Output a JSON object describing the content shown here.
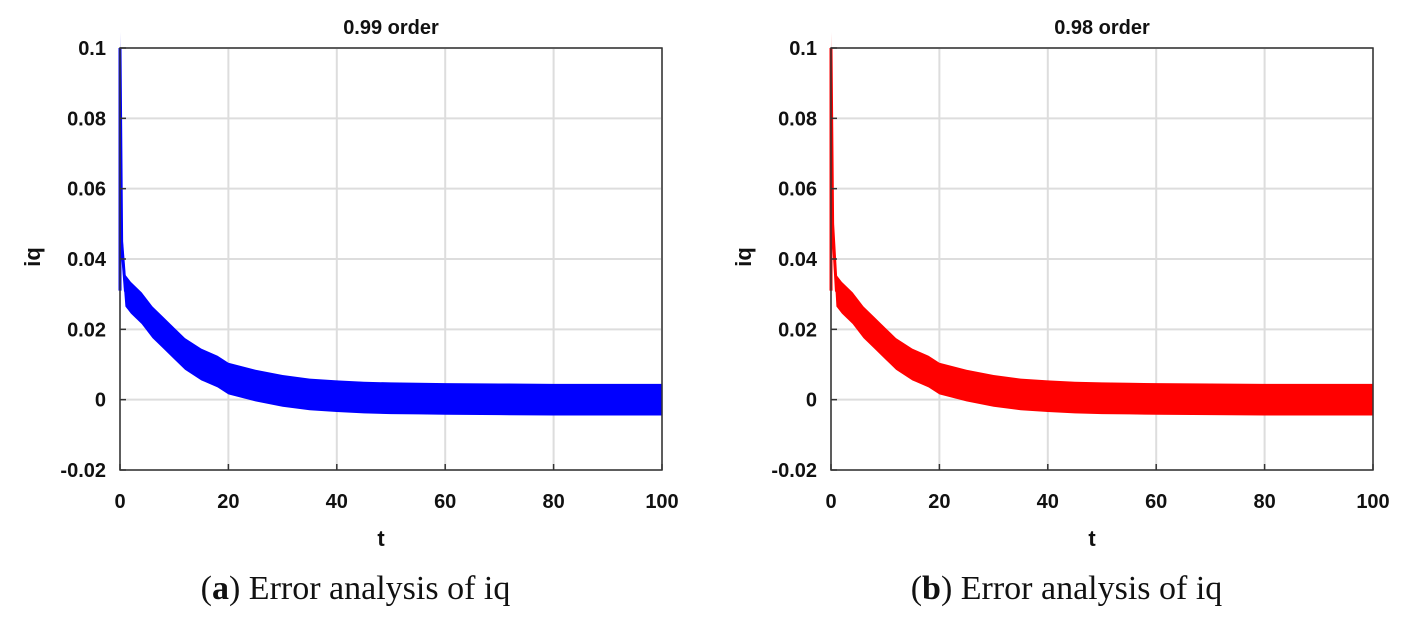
{
  "chart_data": [
    {
      "type": "line",
      "title": "0.99 order",
      "xlabel": "t",
      "ylabel": "iq",
      "xlim": [
        0,
        100
      ],
      "ylim": [
        -0.02,
        0.1
      ],
      "xticks": [
        0,
        20,
        40,
        60,
        80,
        100
      ],
      "xtick_labels": [
        "0",
        "20",
        "40",
        "60",
        "80",
        "100"
      ],
      "yticks": [
        -0.02,
        0,
        0.02,
        0.04,
        0.06,
        0.08,
        0.1
      ],
      "ytick_labels": [
        "-0.02",
        "0",
        "0.02",
        "0.04",
        "0.06",
        "0.08",
        "0.1"
      ],
      "grid": true,
      "color": "#0000ff",
      "series": [
        {
          "x": [
            0,
            0.3,
            1,
            2,
            4,
            6,
            8,
            10,
            12,
            15,
            18,
            20,
            25,
            30,
            35,
            40,
            45,
            50,
            55,
            60,
            70,
            80,
            90,
            100
          ],
          "y": [
            0.1,
            0.045,
            0.031,
            0.029,
            0.026,
            0.022,
            0.019,
            0.016,
            0.013,
            0.01,
            0.008,
            0.006,
            0.004,
            0.0025,
            0.0015,
            0.001,
            0.0006,
            0.0004,
            0.0003,
            0.0002,
            0.0001,
            0.0,
            0.0,
            0.0
          ],
          "band": 0.0045
        }
      ],
      "caption_label": "a",
      "caption_text": "Error analysis of iq"
    },
    {
      "type": "line",
      "title": "0.98 order",
      "xlabel": "t",
      "ylabel": "iq",
      "xlim": [
        0,
        100
      ],
      "ylim": [
        -0.02,
        0.1
      ],
      "xticks": [
        0,
        20,
        40,
        60,
        80,
        100
      ],
      "xtick_labels": [
        "0",
        "20",
        "40",
        "60",
        "80",
        "100"
      ],
      "yticks": [
        -0.02,
        0,
        0.02,
        0.04,
        0.06,
        0.08,
        0.1
      ],
      "ytick_labels": [
        "-0.02",
        "0",
        "0.02",
        "0.04",
        "0.06",
        "0.08",
        "0.1"
      ],
      "grid": true,
      "color": "#ff0000",
      "series": [
        {
          "x": [
            0,
            0.3,
            1,
            2,
            4,
            6,
            8,
            10,
            12,
            15,
            18,
            20,
            25,
            30,
            35,
            40,
            45,
            50,
            55,
            60,
            70,
            80,
            90,
            100
          ],
          "y": [
            0.1,
            0.05,
            0.031,
            0.029,
            0.026,
            0.022,
            0.019,
            0.016,
            0.013,
            0.01,
            0.008,
            0.006,
            0.004,
            0.0025,
            0.0015,
            0.001,
            0.0006,
            0.0004,
            0.0003,
            0.0002,
            0.0001,
            0.0,
            0.0,
            0.0
          ],
          "band": 0.0045
        }
      ],
      "caption_label": "b",
      "caption_text": "Error analysis of iq"
    }
  ]
}
